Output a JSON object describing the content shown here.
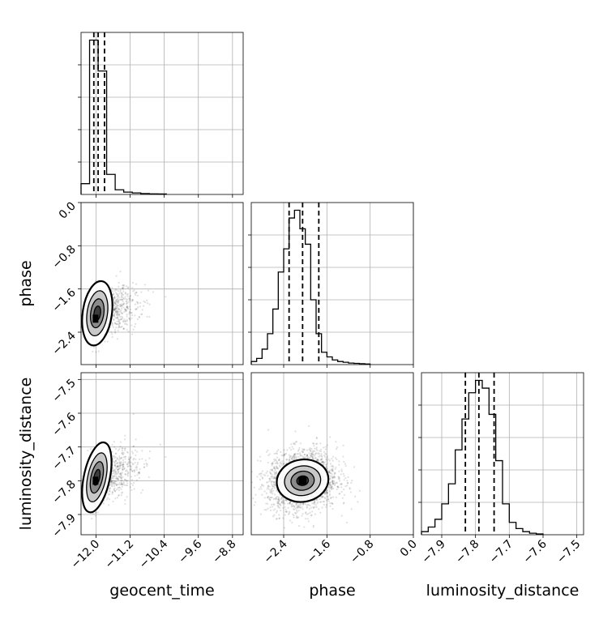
{
  "figure": {
    "type": "corner-plot",
    "params": [
      "geocent_time",
      "phase",
      "luminosity_distance"
    ],
    "axis_labels": {
      "geocent_time": "geocent_time",
      "phase": "phase",
      "luminosity_distance": "luminosity_distance"
    }
  },
  "chart_data": [
    {
      "type": "bar",
      "id": "hist-geocent_time",
      "xlabel": "",
      "ylabel": "",
      "xlim": [
        -12.35,
        -8.55
      ],
      "bin_edges": [
        -12.35,
        -12.15,
        -11.95,
        -11.75,
        -11.55,
        -11.35,
        -11.15,
        -10.95,
        -10.75,
        -10.55,
        -10.35
      ],
      "values": [
        0.07,
        1.0,
        0.8,
        0.13,
        0.03,
        0.015,
        0.01,
        0.006,
        0.004,
        0.003
      ],
      "quantile_lines": [
        -12.05,
        -11.95,
        -11.8
      ],
      "xticks": [
        "−12.0",
        "−11.2",
        "−10.4",
        "−9.6",
        "−8.8"
      ],
      "xtick_values": [
        -12.0,
        -11.2,
        -10.4,
        -9.6,
        -8.8
      ],
      "grid": true,
      "color": "#000000"
    },
    {
      "type": "bar",
      "id": "hist-phase",
      "xlabel": "phase",
      "ylabel": "",
      "xlim": [
        -3.0,
        0.0
      ],
      "bin_edges": [
        -3.0,
        -2.9,
        -2.8,
        -2.7,
        -2.6,
        -2.5,
        -2.4,
        -2.3,
        -2.2,
        -2.1,
        -2.0,
        -1.9,
        -1.8,
        -1.7,
        -1.6,
        -1.5,
        -1.4,
        -1.3,
        -1.2,
        -1.1,
        -1.0,
        -0.9,
        -0.8
      ],
      "values": [
        0.02,
        0.04,
        0.1,
        0.2,
        0.36,
        0.6,
        0.75,
        0.95,
        1.0,
        0.88,
        0.78,
        0.42,
        0.2,
        0.08,
        0.05,
        0.03,
        0.02,
        0.015,
        0.01,
        0.008,
        0.006,
        0.004
      ],
      "quantile_lines": [
        -2.3,
        -2.05,
        -1.75
      ],
      "xticks": [
        "−2.4",
        "−1.6",
        "−0.8",
        "0.0"
      ],
      "xtick_values": [
        -2.4,
        -1.6,
        -0.8,
        0.0
      ],
      "grid": true,
      "color": "#000000"
    },
    {
      "type": "bar",
      "id": "hist-luminosity_distance",
      "xlabel": "luminosity_distance",
      "ylabel": "",
      "xlim": [
        -7.96,
        -7.48
      ],
      "bin_edges": [
        -7.96,
        -7.94,
        -7.92,
        -7.9,
        -7.88,
        -7.86,
        -7.84,
        -7.82,
        -7.8,
        -7.78,
        -7.76,
        -7.74,
        -7.72,
        -7.7,
        -7.68,
        -7.66,
        -7.64,
        -7.62,
        -7.6
      ],
      "values": [
        0.02,
        0.05,
        0.1,
        0.2,
        0.33,
        0.55,
        0.75,
        0.92,
        1.0,
        0.95,
        0.78,
        0.48,
        0.2,
        0.08,
        0.04,
        0.02,
        0.01,
        0.005
      ],
      "quantile_lines": [
        -7.83,
        -7.79,
        -7.745
      ],
      "xticks": [
        "−7.9",
        "−7.8",
        "−7.7",
        "−7.6",
        "−7.5"
      ],
      "xtick_values": [
        -7.9,
        -7.8,
        -7.7,
        -7.6,
        -7.5
      ],
      "grid": true,
      "color": "#000000"
    },
    {
      "type": "scatter",
      "id": "joint-geocent_time-phase",
      "xlabel": "",
      "ylabel": "phase",
      "xlim": [
        -12.35,
        -8.55
      ],
      "ylim": [
        -3.0,
        0.0
      ],
      "yticks": [
        "−2.4",
        "−1.6",
        "−0.8",
        "0.0"
      ],
      "ytick_values": [
        -2.4,
        -1.6,
        -0.8,
        0.0
      ],
      "centers": [
        [
          -11.97,
          -2.05
        ],
        [
          -12.02,
          -2.15
        ]
      ],
      "contour_sigma_levels": 3,
      "grid": true
    },
    {
      "type": "scatter",
      "id": "joint-geocent_time-luminosity_distance",
      "xlabel": "geocent_time",
      "ylabel": "luminosity_distance",
      "xlim": [
        -12.35,
        -8.55
      ],
      "ylim": [
        -7.96,
        -7.48
      ],
      "xticks": [
        "−12.0",
        "−11.2",
        "−10.4",
        "−9.6",
        "−8.8"
      ],
      "xtick_values": [
        -12.0,
        -11.2,
        -10.4,
        -9.6,
        -8.8
      ],
      "yticks": [
        "−7.9",
        "−7.8",
        "−7.7",
        "−7.6",
        "−7.5"
      ],
      "ytick_values": [
        -7.9,
        -7.8,
        -7.7,
        -7.6,
        -7.5
      ],
      "centers": [
        [
          -11.98,
          -7.79
        ],
        [
          -12.02,
          -7.8
        ]
      ],
      "contour_sigma_levels": 3,
      "grid": true
    },
    {
      "type": "scatter",
      "id": "joint-phase-luminosity_distance",
      "xlabel": "phase",
      "ylabel": "",
      "xlim": [
        -3.0,
        0.0
      ],
      "ylim": [
        -7.96,
        -7.48
      ],
      "xticks": [
        "−2.4",
        "−1.6",
        "−0.8",
        "0.0"
      ],
      "xtick_values": [
        -2.4,
        -1.6,
        -0.8,
        0.0
      ],
      "centers": [
        [
          -2.05,
          -7.8
        ]
      ],
      "contour_sigma_levels": 3,
      "grid": true
    }
  ]
}
